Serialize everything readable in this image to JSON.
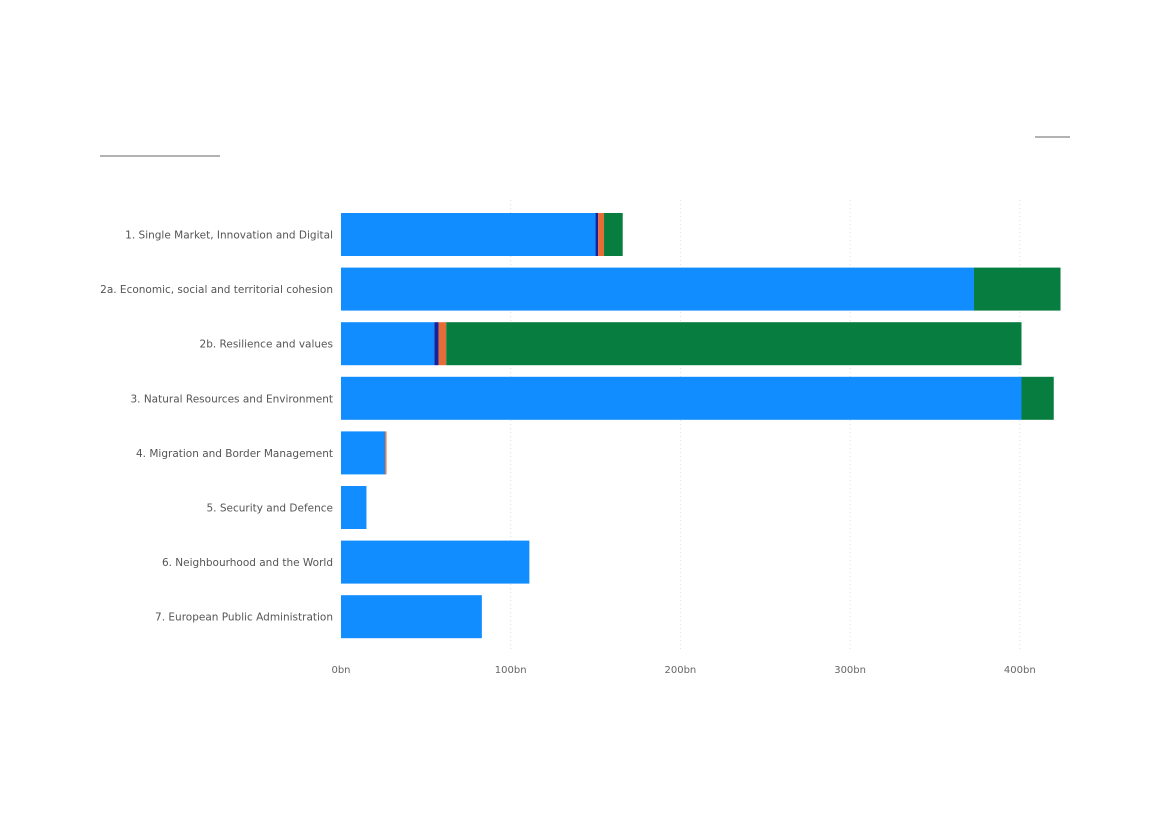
{
  "chart_data": {
    "type": "bar",
    "orientation": "horizontal",
    "stacked": true,
    "categories": [
      "1. Single Market, Innovation and Digital",
      "2a. Economic, social and territorial cohesion",
      "2b. Resilience and values",
      "3. Natural Resources and Environment",
      "4. Migration and Border Management",
      "5. Security and Defence",
      "6. Neighbourhood and the World",
      "7. European Public Administration"
    ],
    "series": [
      {
        "color": "#118dff",
        "values": [
          150,
          373,
          55,
          401,
          26,
          15,
          111,
          83
        ]
      },
      {
        "color": "#12239e",
        "values": [
          1.5,
          0,
          2.5,
          0,
          0,
          0,
          0,
          0
        ]
      },
      {
        "color": "#e66c37",
        "values": [
          3.5,
          0,
          4.5,
          0,
          0.8,
          0,
          0,
          0
        ]
      },
      {
        "color": "#077d3f",
        "values": [
          11,
          51,
          339,
          19,
          0,
          0,
          0,
          0
        ]
      }
    ],
    "x_ticks": [
      "0bn",
      "100bn",
      "200bn",
      "300bn",
      "400bn"
    ],
    "x_tick_values": [
      0,
      100,
      200,
      300,
      400
    ],
    "xlim": [
      0,
      430
    ],
    "grid": "vertical dotted",
    "legend": "none"
  }
}
